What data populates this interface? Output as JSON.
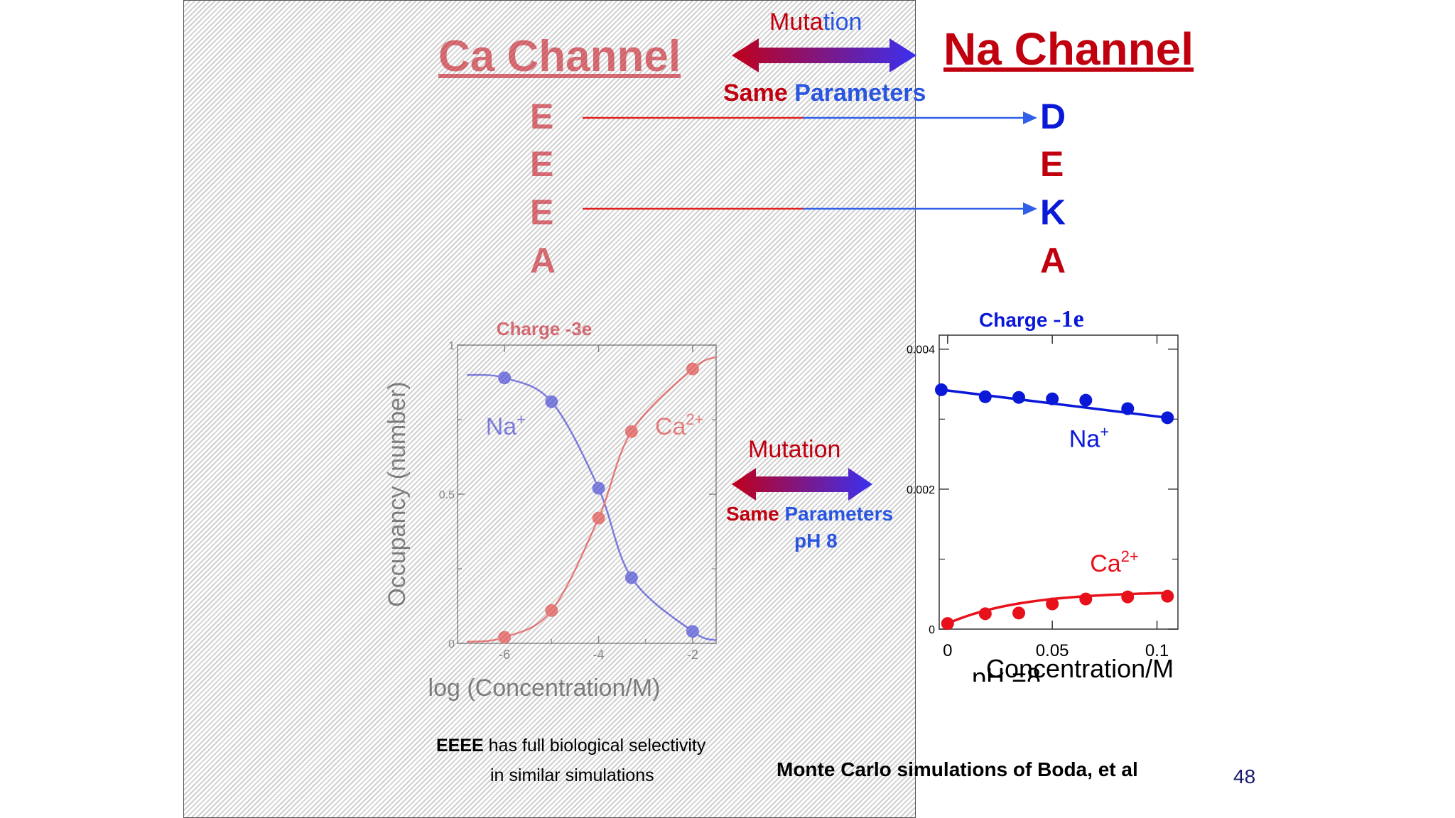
{
  "slide": {
    "title_left": "Ca Channel",
    "title_right": "Na Channel",
    "mutation_top_1": "Muta",
    "mutation_top_2": "tion",
    "same": "Same",
    "parameters": "Parameters",
    "left_letters": [
      "E",
      "E",
      "E",
      "A"
    ],
    "right_letters": [
      "D",
      "E",
      "K",
      "A"
    ],
    "mid_mutation": "Mutation",
    "mid_same": "Same",
    "mid_parameters": "Parameters",
    "mid_ph": "pH 8",
    "eeee_bold": "EEEE",
    "eeee_rest": " has full biological selectivity",
    "eeee_line2": "in similar simulations",
    "credit": "Monte Carlo simulations of Boda, et al",
    "page_number": "48"
  },
  "colors": {
    "red": "#c0000f",
    "blue": "#0a18d8",
    "mid_blue": "#2a55e0",
    "arrow_purple": "#7d2fd0"
  },
  "chart_data": [
    {
      "type": "line",
      "title": "Charge  -3e",
      "xlabel": "log (Concentration/M)",
      "ylabel": "Occupancy (number)",
      "xlim": [
        -7,
        -1.5
      ],
      "ylim": [
        0,
        1
      ],
      "xticks": [
        "-6",
        "-4",
        "-2"
      ],
      "yticks": [
        "0",
        "0.5",
        "1"
      ],
      "series": [
        {
          "name": "Na+",
          "color": "#2020d0",
          "x": [
            -6,
            -5,
            -4,
            -3.3,
            -2
          ],
          "y": [
            0.89,
            0.81,
            0.52,
            0.22,
            0.04
          ]
        },
        {
          "name": "Ca2+",
          "color": "#e02020",
          "x": [
            -6,
            -5,
            -4,
            -3.3,
            -2
          ],
          "y": [
            0.02,
            0.11,
            0.42,
            0.71,
            0.92
          ]
        }
      ]
    },
    {
      "type": "line",
      "title": "Charge -1e",
      "xlabel": "Concentration/M",
      "xlabel2": "pH =8",
      "xlim": [
        -0.004,
        0.11
      ],
      "ylim": [
        0,
        0.0042
      ],
      "xticks": [
        "0",
        "0.05",
        "0.1"
      ],
      "yticks": [
        "0",
        "0.002",
        "0.004"
      ],
      "series": [
        {
          "name": "Na+",
          "color": "#0a18d8",
          "x": [
            -0.003,
            0.018,
            0.034,
            0.05,
            0.066,
            0.086,
            0.105
          ],
          "y": [
            0.00342,
            0.00332,
            0.00331,
            0.00329,
            0.00327,
            0.00315,
            0.00302
          ]
        },
        {
          "name": "Ca2+",
          "color": "#e8101a",
          "x": [
            0.0,
            0.018,
            0.034,
            0.05,
            0.066,
            0.086,
            0.105
          ],
          "y": [
            8e-05,
            0.00022,
            0.00023,
            0.00036,
            0.00043,
            0.00046,
            0.00047
          ]
        }
      ]
    }
  ]
}
